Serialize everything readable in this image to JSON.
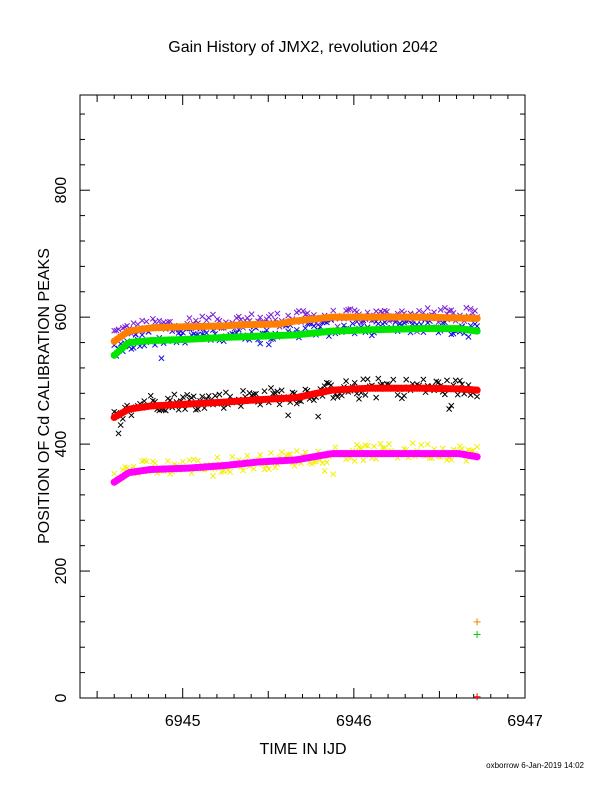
{
  "chart_data": {
    "type": "scatter",
    "title": "Gain History of JMX2, revolution 2042",
    "xlabel": "TIME IN IJD",
    "ylabel": "POSITION OF Cd CALIBRATION PEAKS",
    "xlim": [
      6944.4,
      6947.0
    ],
    "ylim": [
      0,
      950
    ],
    "xticks": [
      "6945",
      "6946",
      "6947"
    ],
    "yticks": [
      "0",
      "200",
      "400",
      "600",
      "800"
    ],
    "x_start": 6944.6,
    "x_end": 6946.72,
    "series": [
      {
        "kind": "scatter",
        "marker": "x",
        "color": "#7a1fd6",
        "t": [
          0.0,
          0.08,
          0.2,
          0.3,
          0.4,
          0.5,
          0.6,
          0.7,
          0.85,
          1.0
        ],
        "y": [
          575,
          585,
          590,
          593,
          595,
          598,
          600,
          602,
          603,
          603
        ],
        "noise": 12
      },
      {
        "kind": "scatter",
        "marker": "x",
        "color": "#1010e6",
        "t": [
          0.0,
          0.08,
          0.2,
          0.3,
          0.4,
          0.5,
          0.6,
          0.7,
          0.85,
          1.0
        ],
        "y": [
          550,
          568,
          572,
          575,
          577,
          580,
          583,
          585,
          588,
          580
        ],
        "noise": 13
      },
      {
        "kind": "scatter",
        "marker": "x",
        "color": "#000000",
        "t": [
          0.0,
          0.08,
          0.2,
          0.3,
          0.4,
          0.5,
          0.6,
          0.7,
          0.85,
          1.0
        ],
        "y": [
          440,
          465,
          468,
          470,
          475,
          477,
          485,
          490,
          490,
          488
        ],
        "noise": 14
      },
      {
        "kind": "scatter",
        "marker": "x",
        "color": "#f0f000",
        "t": [
          0.0,
          0.08,
          0.2,
          0.3,
          0.4,
          0.5,
          0.6,
          0.7,
          0.85,
          1.0
        ],
        "y": [
          355,
          362,
          365,
          368,
          372,
          378,
          385,
          387,
          390,
          385
        ],
        "noise": 13
      },
      {
        "kind": "line",
        "color": "#ff7f00",
        "t": [
          0.0,
          0.04,
          0.1,
          0.2,
          0.3,
          0.35,
          0.45,
          0.5,
          0.6,
          0.7,
          0.85,
          1.0
        ],
        "y": [
          562,
          578,
          583,
          585,
          586,
          588,
          589,
          594,
          600,
          600,
          600,
          598
        ]
      },
      {
        "kind": "line",
        "color": "#00e600",
        "t": [
          0.0,
          0.04,
          0.1,
          0.2,
          0.3,
          0.4,
          0.5,
          0.6,
          0.7,
          0.85,
          0.95,
          1.0
        ],
        "y": [
          540,
          560,
          563,
          565,
          568,
          570,
          572,
          578,
          580,
          582,
          582,
          578
        ]
      },
      {
        "kind": "line",
        "color": "#ff0000",
        "t": [
          0.0,
          0.04,
          0.1,
          0.2,
          0.3,
          0.4,
          0.5,
          0.6,
          0.7,
          0.85,
          0.95,
          1.0
        ],
        "y": [
          442,
          455,
          460,
          463,
          466,
          470,
          473,
          485,
          488,
          488,
          487,
          485
        ]
      },
      {
        "kind": "line",
        "color": "#ff00ff",
        "t": [
          0.0,
          0.04,
          0.1,
          0.2,
          0.3,
          0.4,
          0.5,
          0.6,
          0.7,
          0.85,
          0.95,
          1.0
        ],
        "y": [
          340,
          355,
          360,
          362,
          366,
          372,
          375,
          385,
          385,
          385,
          385,
          380
        ]
      }
    ],
    "isolated_points": [
      {
        "x": 6946.72,
        "y": 120,
        "color": "#ff7f00",
        "marker": "+"
      },
      {
        "x": 6946.72,
        "y": 100,
        "color": "#00d000",
        "marker": "+"
      },
      {
        "x": 6946.72,
        "y": 2,
        "color": "#ff0000",
        "marker": "+"
      }
    ]
  },
  "footer": {
    "credit": "oxborrow  6-Jan-2019 14:02"
  }
}
